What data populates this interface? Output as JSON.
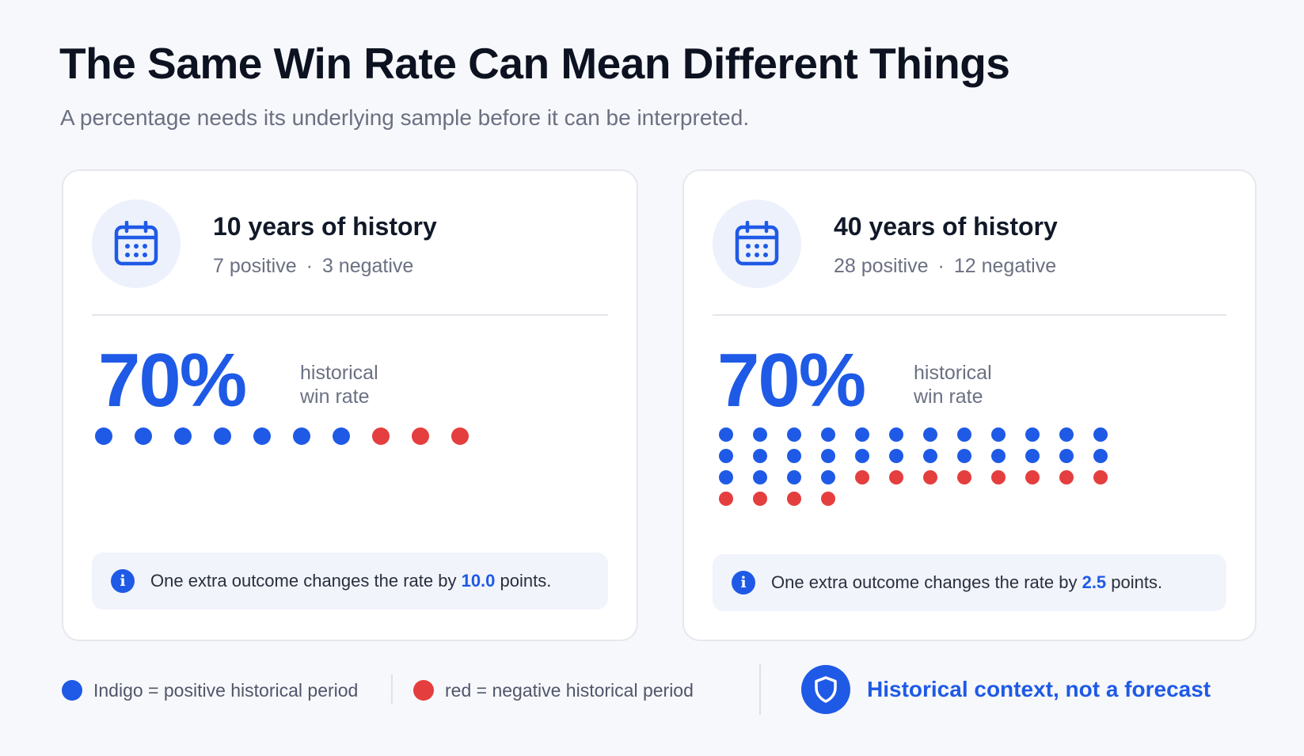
{
  "header": {
    "title": "The Same Win Rate Can Mean Different Things",
    "subtitle": "A percentage needs its underlying sample before it can be interpreted."
  },
  "colors": {
    "positive": "#1f5ae6",
    "negative": "#e53e3e",
    "accent": "#1f5ae6"
  },
  "cards": [
    {
      "icon": "calendar-icon",
      "title": "10 years of history",
      "positive_text": "7 positive",
      "separator": "·",
      "negative_text": "3 negative",
      "win_rate": "70%",
      "win_rate_label": "historical win rate",
      "positive_count": 7,
      "negative_count": 3,
      "info_prefix": "One extra outcome changes the rate by",
      "info_value": "10.0",
      "info_suffix": "points."
    },
    {
      "icon": "calendar-icon",
      "title": "40 years of history",
      "positive_text": "28 positive",
      "separator": "·",
      "negative_text": "12 negative",
      "win_rate": "70%",
      "win_rate_label": "historical win rate",
      "positive_count": 28,
      "negative_count": 12,
      "info_prefix": "One extra outcome changes the rate by",
      "info_value": "2.5",
      "info_suffix": "points."
    }
  ],
  "legend": {
    "positive_label": "Indigo = positive historical period",
    "negative_label": "red = negative historical period"
  },
  "badge": {
    "icon": "shield-icon",
    "text": "Historical context, not a forecast"
  }
}
